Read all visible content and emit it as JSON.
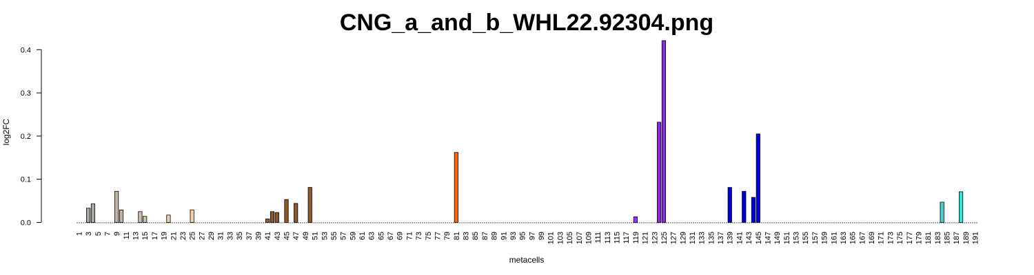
{
  "chart_data": {
    "type": "bar",
    "title": "CNG_a_and_b_WHL22.92304.png",
    "xlabel": "metacells",
    "ylabel": "log2FC",
    "ylim": [
      0,
      0.42
    ],
    "yticks": [
      "0.0",
      "0.1",
      "0.2",
      "0.3",
      "0.4"
    ],
    "x_tick_labels": [
      "1",
      "3",
      "5",
      "7",
      "9",
      "11",
      "13",
      "15",
      "17",
      "19",
      "21",
      "23",
      "25",
      "27",
      "29",
      "31",
      "33",
      "35",
      "37",
      "39",
      "41",
      "43",
      "45",
      "47",
      "49",
      "51",
      "53",
      "55",
      "57",
      "59",
      "61",
      "63",
      "65",
      "67",
      "69",
      "71",
      "73",
      "75",
      "77",
      "79",
      "81",
      "83",
      "85",
      "87",
      "89",
      "91",
      "93",
      "95",
      "97",
      "99",
      "101",
      "103",
      "105",
      "107",
      "109",
      "111",
      "113",
      "115",
      "117",
      "119",
      "121",
      "123",
      "125",
      "127",
      "129",
      "131",
      "133",
      "135",
      "137",
      "139",
      "141",
      "143",
      "145",
      "147",
      "149",
      "151",
      "153",
      "155",
      "157",
      "159",
      "161",
      "163",
      "165",
      "167",
      "169",
      "171",
      "173",
      "175",
      "177",
      "179",
      "181",
      "183",
      "185",
      "187",
      "189",
      "191"
    ],
    "n_categories": 191,
    "grid": false,
    "bars": [
      {
        "x": 3,
        "value": 0.033,
        "color": "#a8a8a0"
      },
      {
        "x": 4,
        "value": 0.043,
        "color": "#a8a8a0"
      },
      {
        "x": 9,
        "value": 0.072,
        "color": "#c2b5a6"
      },
      {
        "x": 10,
        "value": 0.029,
        "color": "#c2b5a6"
      },
      {
        "x": 14,
        "value": 0.025,
        "color": "#d2bfa8"
      },
      {
        "x": 15,
        "value": 0.014,
        "color": "#d2bfa8"
      },
      {
        "x": 20,
        "value": 0.017,
        "color": "#eecfa6"
      },
      {
        "x": 25,
        "value": 0.029,
        "color": "#f6d2aa"
      },
      {
        "x": 41,
        "value": 0.008,
        "color": "#9a6638"
      },
      {
        "x": 42,
        "value": 0.025,
        "color": "#8a5a2e"
      },
      {
        "x": 43,
        "value": 0.023,
        "color": "#8a5a2e"
      },
      {
        "x": 45,
        "value": 0.053,
        "color": "#8b5a2b"
      },
      {
        "x": 47,
        "value": 0.044,
        "color": "#8b5a2b"
      },
      {
        "x": 50,
        "value": 0.081,
        "color": "#8b5a2b"
      },
      {
        "x": 81,
        "value": 0.162,
        "color": "#ff6a00"
      },
      {
        "x": 119,
        "value": 0.013,
        "color": "#9b30ff"
      },
      {
        "x": 124,
        "value": 0.232,
        "color": "#8a2be2"
      },
      {
        "x": 125,
        "value": 0.421,
        "color": "#8a2be2"
      },
      {
        "x": 139,
        "value": 0.081,
        "color": "#0000dd"
      },
      {
        "x": 142,
        "value": 0.072,
        "color": "#0000dd"
      },
      {
        "x": 144,
        "value": 0.058,
        "color": "#0000dd"
      },
      {
        "x": 145,
        "value": 0.205,
        "color": "#0000dd"
      },
      {
        "x": 184,
        "value": 0.047,
        "color": "#48d1cc"
      },
      {
        "x": 188,
        "value": 0.071,
        "color": "#2ee8d8"
      }
    ]
  }
}
